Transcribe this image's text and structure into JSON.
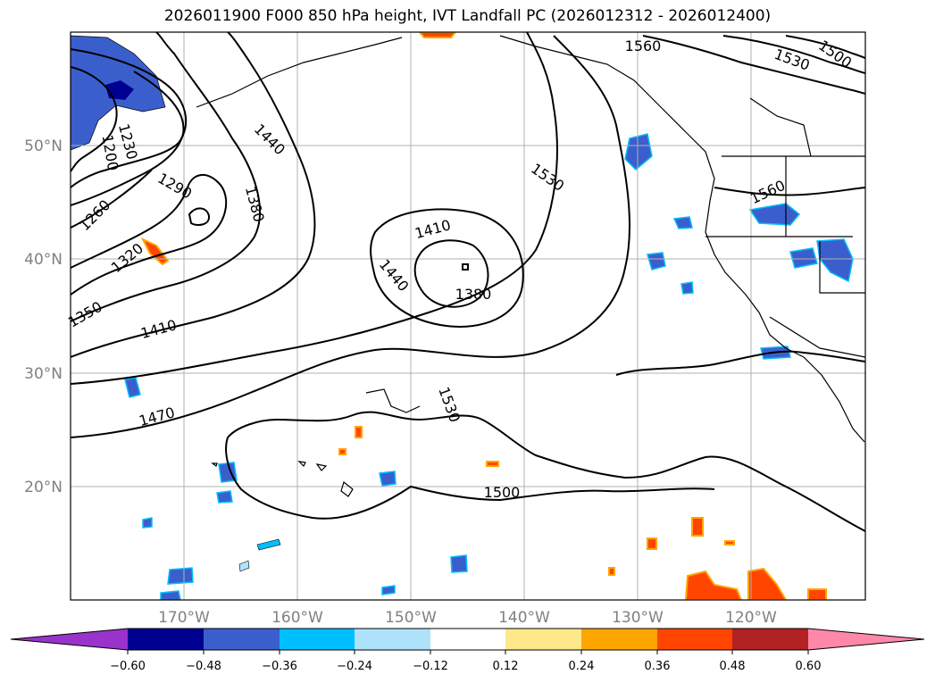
{
  "title": "2026011900 F000 850 hPa height, IVT Landfall PC (2026012312 - 2026012400)",
  "latitude_labels": [
    "50°N",
    "40°N",
    "30°N",
    "20°N"
  ],
  "longitude_labels": [
    "170°W",
    "160°W",
    "150°W",
    "140°W",
    "130°W",
    "120°W"
  ],
  "contour_labels": [
    "1560",
    "1530",
    "1500",
    "1440",
    "1230",
    "1200",
    "1290",
    "1380",
    "1260",
    "1320",
    "1350",
    "1410",
    "1470",
    "1530",
    "1410",
    "1440",
    "1380",
    "1560",
    "1530",
    "1500"
  ],
  "colorbar": {
    "ticks": [
      "−0.60",
      "−0.48",
      "−0.36",
      "−0.24",
      "−0.12",
      "0.12",
      "0.24",
      "0.36",
      "0.48",
      "0.60"
    ],
    "colors": [
      "#9933cc",
      "#000090",
      "#3a5fcd",
      "#00bfff",
      "#aee3fb",
      "#ffffff",
      "#fde98a",
      "#ffa500",
      "#ff4500",
      "#b22222",
      "#ff88aa"
    ]
  }
}
